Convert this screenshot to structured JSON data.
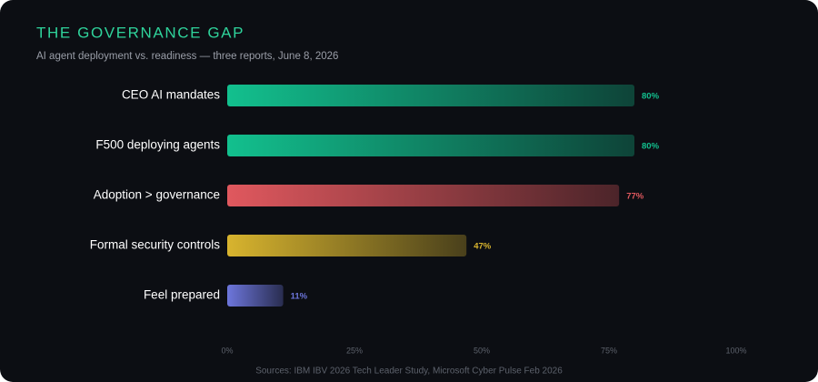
{
  "chart_data": {
    "type": "bar",
    "orientation": "horizontal",
    "title": "THE GOVERNANCE GAP",
    "subtitle": "AI agent deployment vs. readiness — three reports, June 8, 2026",
    "categories": [
      "CEO AI mandates",
      "F500 deploying agents",
      "Adoption > governance",
      "Formal security controls",
      "Feel prepared"
    ],
    "values": [
      80,
      80,
      77,
      47,
      11
    ],
    "value_labels": [
      "80%",
      "80%",
      "77%",
      "47%",
      "11%"
    ],
    "colors": [
      "#12c08e",
      "#12c08e",
      "#e0585e",
      "#d8b42e",
      "#6d76dc"
    ],
    "xlim": [
      0,
      100
    ],
    "xticks": [
      {
        "value": 0,
        "label": "0%"
      },
      {
        "value": 25,
        "label": "25%"
      },
      {
        "value": 50,
        "label": "50%"
      },
      {
        "value": 75,
        "label": "75%"
      },
      {
        "value": 100,
        "label": "100%"
      }
    ],
    "grid": false,
    "source": "Sources: IBM IBV 2026 Tech Leader Study, Microsoft Cyber Pulse Feb 2026"
  }
}
